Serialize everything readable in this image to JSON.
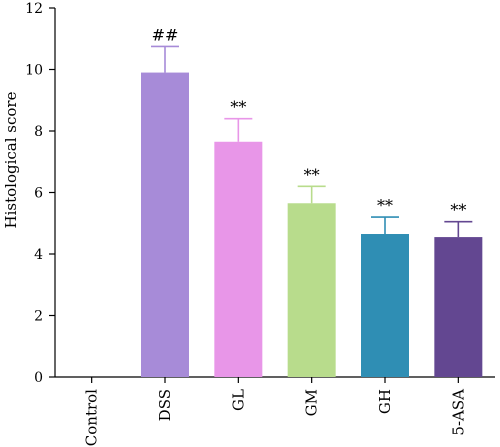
{
  "chart_data": {
    "type": "bar",
    "categories": [
      "Control",
      "DSS",
      "GL",
      "GM",
      "GH",
      "5-ASA"
    ],
    "values": [
      0,
      9.9,
      7.65,
      5.65,
      4.65,
      4.55
    ],
    "errors": [
      0,
      0.85,
      0.75,
      0.55,
      0.55,
      0.5
    ],
    "colors": [
      "#ffffff",
      "#a78bd8",
      "#e896e8",
      "#b8dc8c",
      "#2f8eb4",
      "#634791"
    ],
    "annotations": [
      "",
      "##",
      "**",
      "**",
      "**",
      "**"
    ],
    "xlabel": "",
    "ylabel": "Histological score",
    "ylim": [
      0,
      12
    ],
    "yticks": [
      0,
      2,
      4,
      6,
      8,
      10,
      12
    ],
    "title": "",
    "grid": false
  }
}
